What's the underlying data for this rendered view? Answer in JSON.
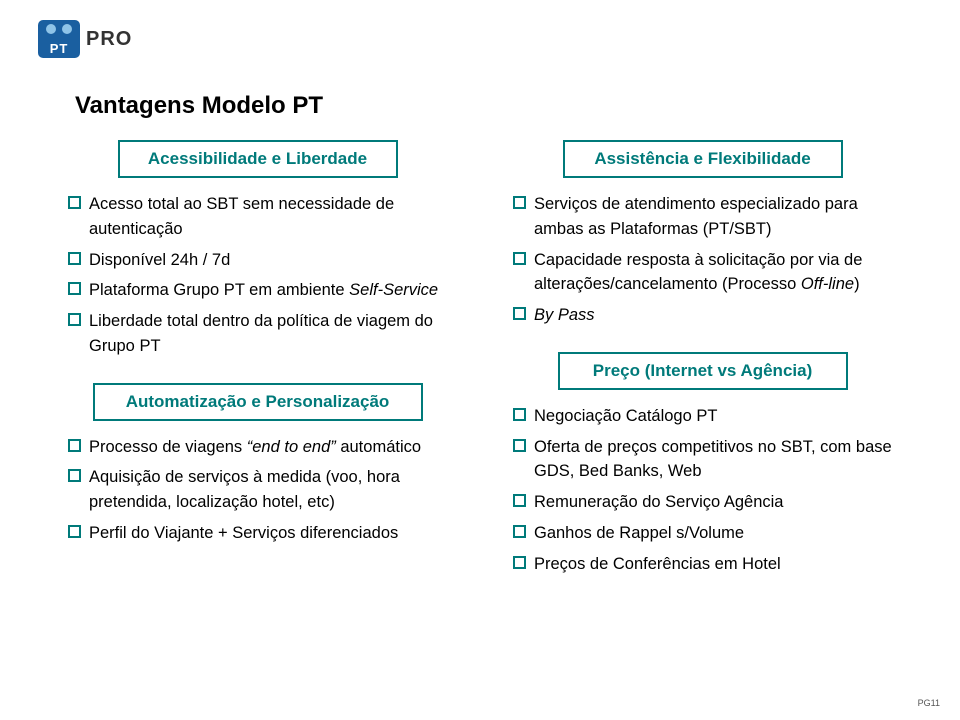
{
  "logo": {
    "pt": "PT",
    "pro": "PRO"
  },
  "title": "Vantagens Modelo PT",
  "colors": {
    "accent": "#007a7a",
    "bullet_left": "#007a7a",
    "bullet_right": "#007a7a",
    "text": "#000000"
  },
  "columns": {
    "left": {
      "section1": {
        "header": "Acessibilidade e Liberdade",
        "items": [
          "Acesso total ao SBT sem necessidade de autenticação",
          "Disponível 24h / 7d",
          "Plataforma Grupo PT em ambiente <span class=\"italic\">Self-Service</span>",
          "Liberdade total dentro da política de viagem do Grupo PT"
        ]
      },
      "section2": {
        "header": "Automatização e Personalização",
        "items": [
          "Processo de viagens <span class=\"italic\">“end to end”</span> automático",
          "Aquisição de serviços à medida (voo, hora pretendida, localização hotel, etc)",
          "Perfil do Viajante + Serviços diferenciados"
        ]
      }
    },
    "right": {
      "section1": {
        "header": "Assistência e Flexibilidade",
        "items": [
          "Serviços de atendimento especializado para ambas as Plataformas (PT/SBT)",
          "Capacidade resposta à solicitação por via de alterações/cancelamento (Processo <span class=\"italic\">Off-line</span>)",
          "<span class=\"italic\">By Pass</span>"
        ]
      },
      "section2": {
        "header": "Preço (Internet vs Agência)",
        "items": [
          "Negociação Catálogo PT",
          "Oferta de preços competitivos no SBT, com base GDS, Bed Banks, Web",
          "Remuneração do Serviço Agência",
          "Ganhos de Rappel s/Volume",
          "Preços de Conferências em Hotel"
        ]
      }
    }
  },
  "page_num": "PG11"
}
